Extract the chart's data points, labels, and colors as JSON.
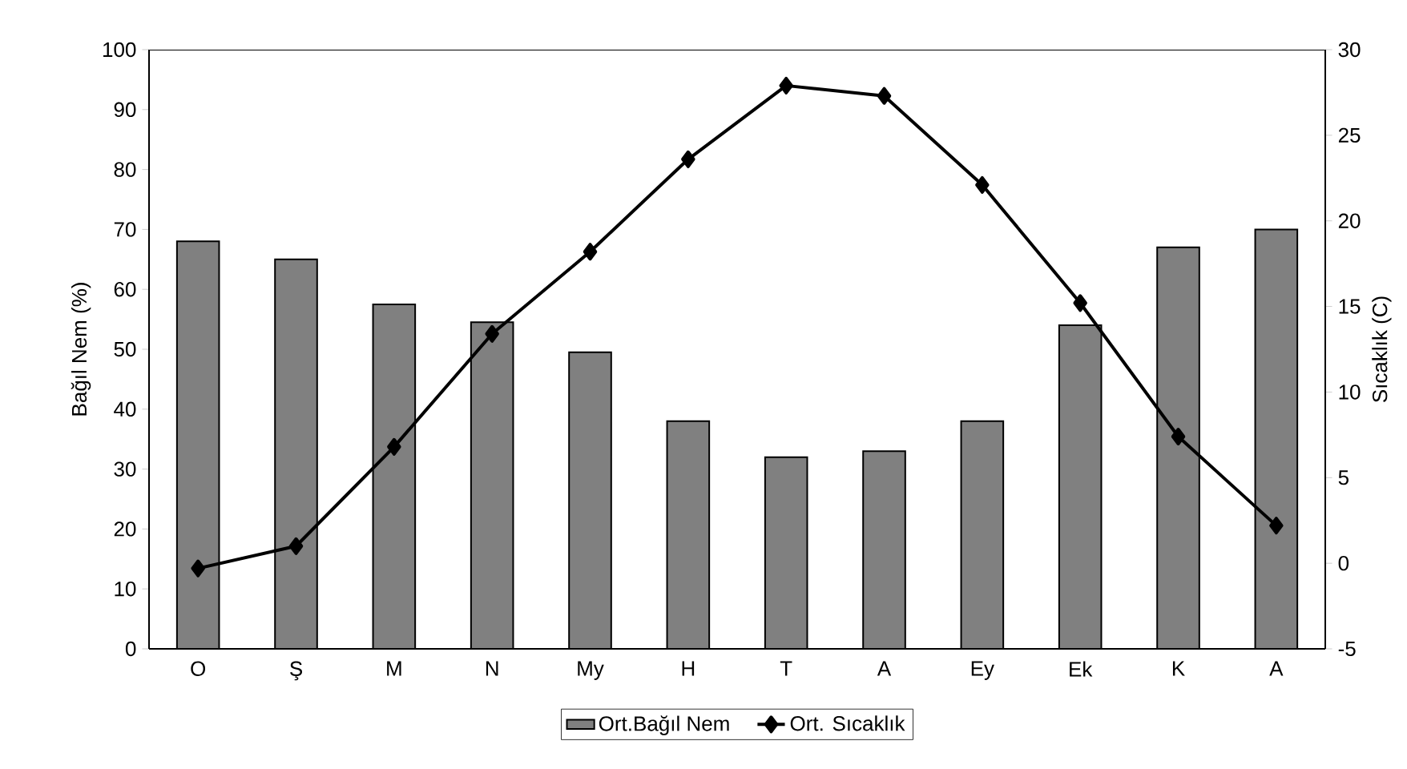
{
  "chart_data": {
    "type": "bar",
    "categories": [
      "O",
      "Ş",
      "M",
      "N",
      "My",
      "H",
      "T",
      "A",
      "Ey",
      "Ek",
      "K",
      "A"
    ],
    "ylabel": "Bağıl Nem (%)",
    "y2label": "Sıcaklık (C)",
    "ylim": [
      0,
      100
    ],
    "yticks": [
      0,
      10,
      20,
      30,
      40,
      50,
      60,
      70,
      80,
      90,
      100
    ],
    "y2lim": [
      -5,
      30
    ],
    "y2ticks": [
      -5,
      0,
      5,
      10,
      15,
      20,
      25,
      30
    ],
    "series": [
      {
        "name": "Ort.Bağıl Nem",
        "color": "#808080",
        "values": [
          68,
          65,
          57.5,
          54.5,
          49.5,
          38,
          32,
          33,
          38,
          54,
          67,
          70
        ]
      },
      {
        "name": "Ort. Sıcaklık",
        "type": "line",
        "axis": "y2",
        "color": "#000000",
        "marker": "diamond",
        "line_style": "solid",
        "values": [
          -0.3,
          1.0,
          6.8,
          13.4,
          18.2,
          23.6,
          27.9,
          27.3,
          22.1,
          15.2,
          7.4,
          2.2
        ]
      }
    ],
    "legend": "bottom"
  }
}
